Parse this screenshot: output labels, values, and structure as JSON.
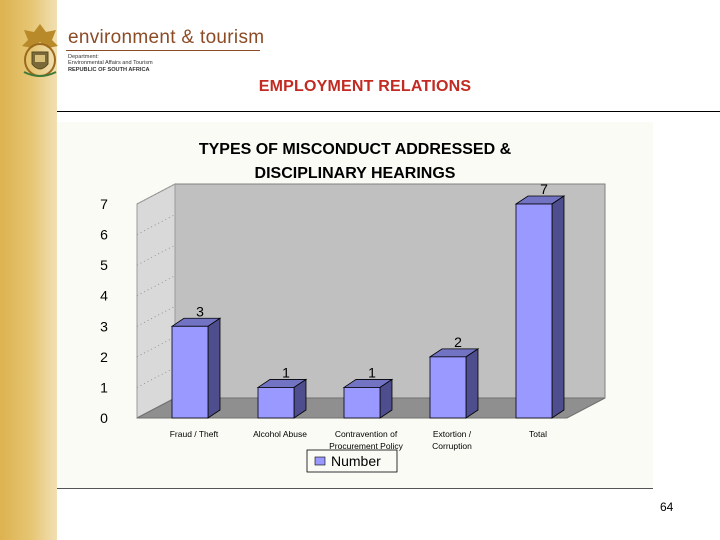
{
  "header": {
    "brand_title": "environment & tourism",
    "brand_line1": "Department:",
    "brand_line2": "Environmental Affairs and Tourism",
    "brand_line3": "REPUBLIC OF SOUTH AFRICA",
    "page_title": "EMPLOYMENT RELATIONS"
  },
  "colors": {
    "bar_front": "#9999ff",
    "bar_side": "#4e4e8e",
    "bar_top": "#7373c4",
    "back_wall": "#c0c0c0",
    "floor": "#8f8f8f",
    "heading_red": "#c22a22",
    "brand_brown": "#8b4b25"
  },
  "chart_data": {
    "type": "bar",
    "title_lines": [
      "TYPES OF MISCONDUCT ADDRESSED &",
      "DISCIPLINARY HEARINGS"
    ],
    "categories": [
      [
        "Fraud / Theft"
      ],
      [
        "Alcohol Abuse"
      ],
      [
        "Contravention of",
        "Procurement Policy"
      ],
      [
        "Extortion /",
        "Corruption"
      ],
      [
        "Total"
      ]
    ],
    "series": [
      {
        "name": "Number",
        "values": [
          3,
          1,
          1,
          2,
          7
        ]
      }
    ],
    "data_labels": [
      "3",
      "1",
      "1",
      "2",
      "7"
    ],
    "y_ticks": [
      "0",
      "1",
      "2",
      "3",
      "4",
      "5",
      "6",
      "7"
    ],
    "ylim": [
      0,
      7
    ],
    "three_d": true,
    "grid": true,
    "legend": "bottom"
  },
  "footer": {
    "page_number": "64"
  }
}
